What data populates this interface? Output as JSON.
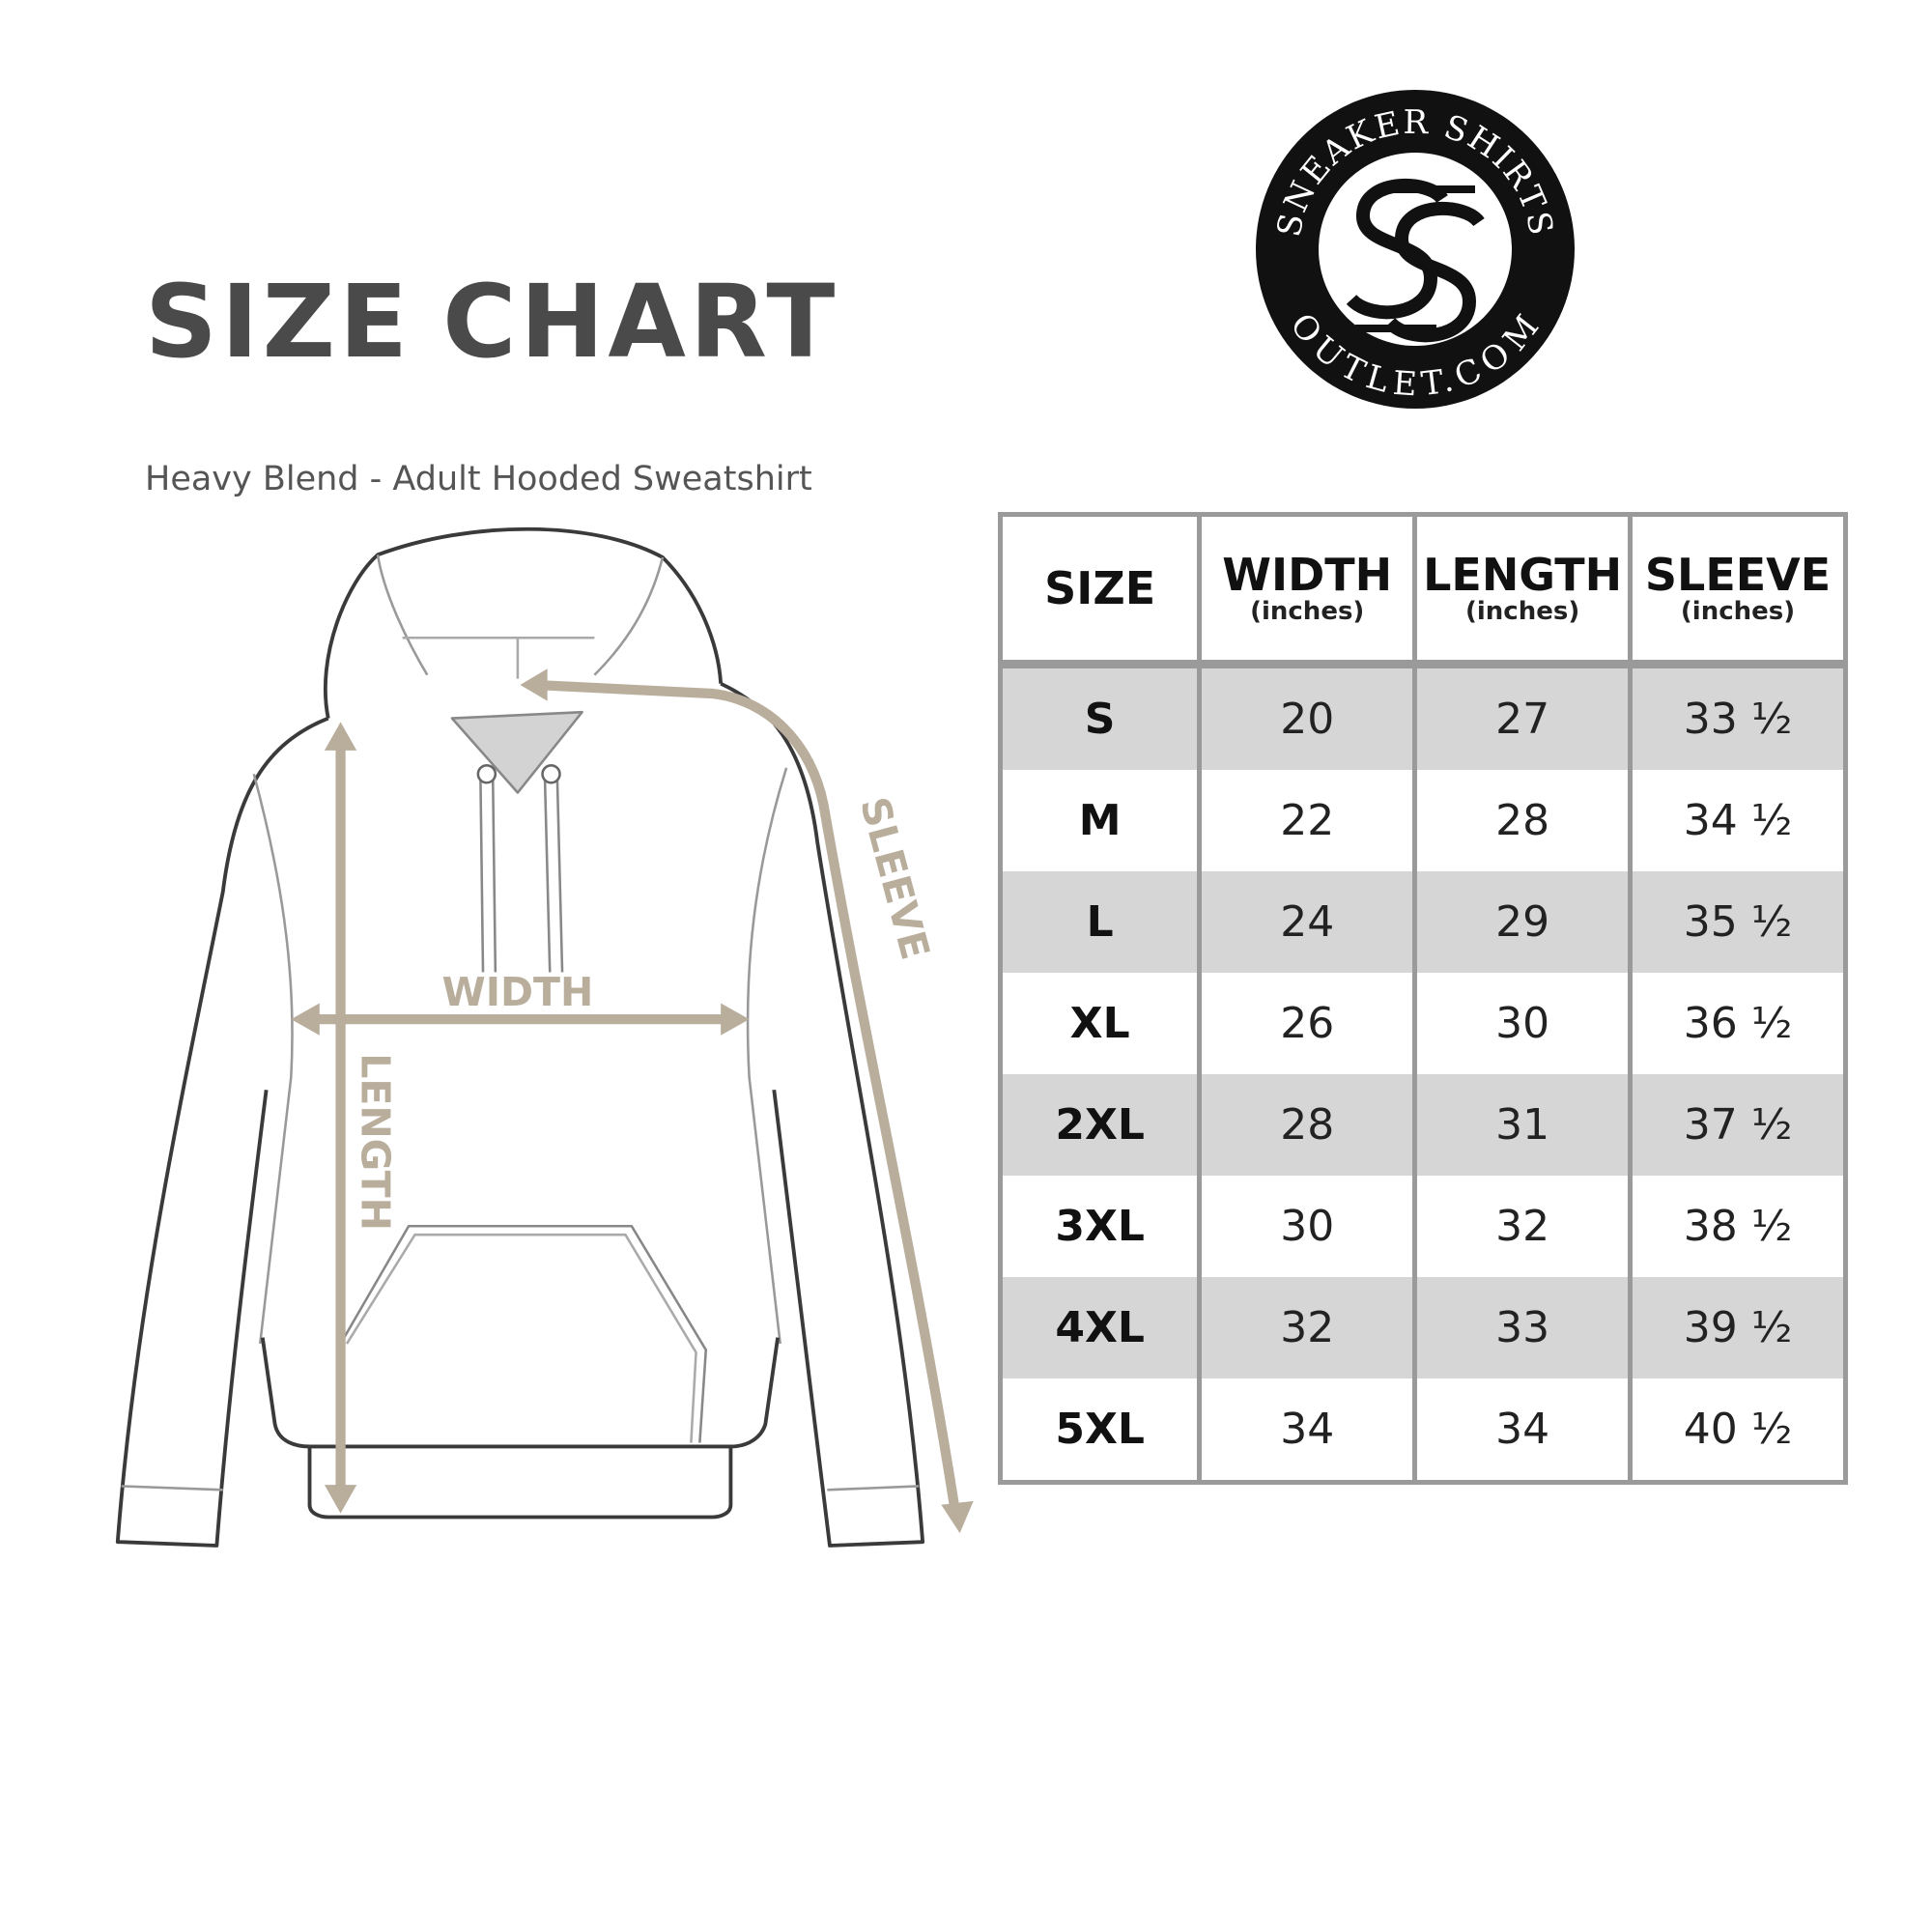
{
  "header": {
    "title_words": [
      "SIZE",
      "CHART"
    ],
    "subtitle": "Heavy Blend - Adult Hooded Sweatshirt"
  },
  "logo": {
    "top_text": "SNEAKER SHIRTS",
    "bottom_text": "OUTLET.COM",
    "monogram": "SS"
  },
  "diagram": {
    "width_label": "WIDTH",
    "length_label": "LENGTH",
    "sleeve_label": "SLEEVE",
    "arrow_color": "#b9ad9c"
  },
  "table": {
    "columns": [
      {
        "label": "SIZE",
        "unit": ""
      },
      {
        "label": "WIDTH",
        "unit": "(inches)"
      },
      {
        "label": "LENGTH",
        "unit": "(inches)"
      },
      {
        "label": "SLEEVE",
        "unit": "(inches)"
      }
    ],
    "rows": [
      [
        "S",
        "20",
        "27",
        "33 ½"
      ],
      [
        "M",
        "22",
        "28",
        "34 ½"
      ],
      [
        "L",
        "24",
        "29",
        "35 ½"
      ],
      [
        "XL",
        "26",
        "30",
        "36 ½"
      ],
      [
        "2XL",
        "28",
        "31",
        "37 ½"
      ],
      [
        "3XL",
        "30",
        "32",
        "38 ½"
      ],
      [
        "4XL",
        "32",
        "33",
        "39 ½"
      ],
      [
        "5XL",
        "34",
        "34",
        "40 ½"
      ]
    ],
    "shade_color": "#d6d6d6",
    "border_color": "#9a9a9a"
  }
}
